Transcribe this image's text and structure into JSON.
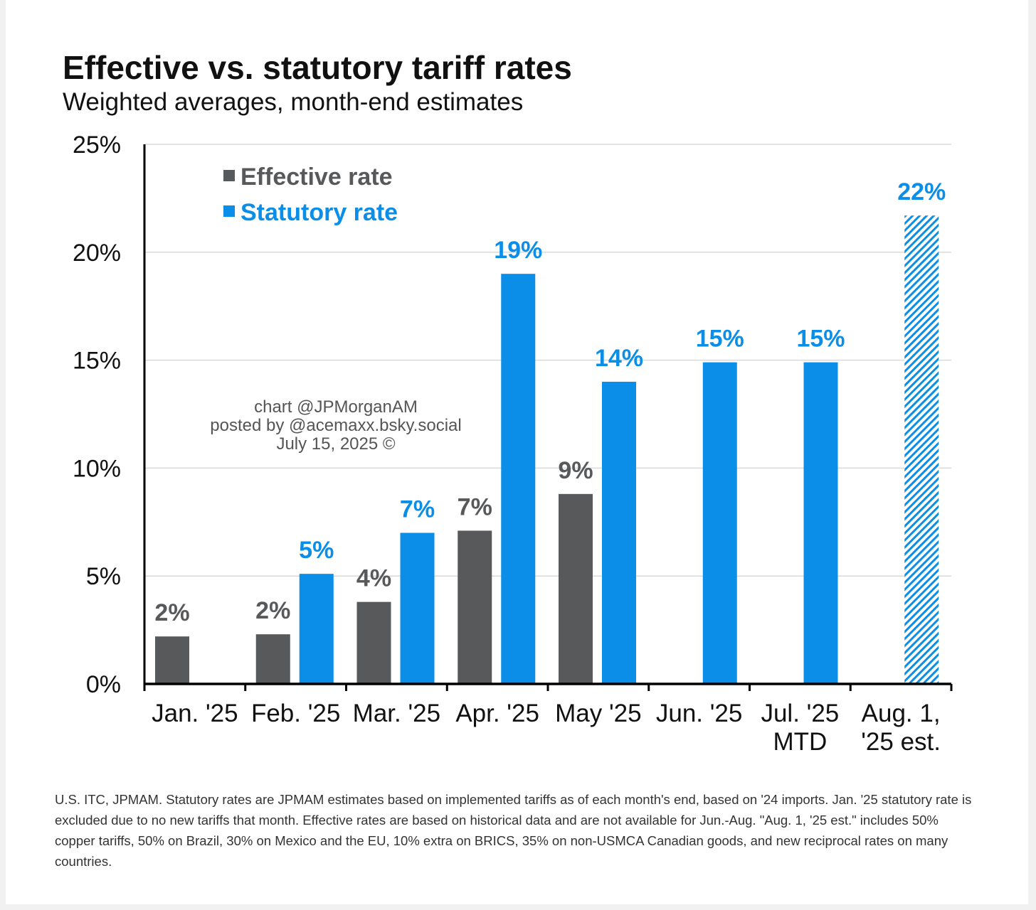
{
  "chart_data": {
    "type": "bar",
    "title": "Effective vs. statutory tariff rates",
    "subtitle": "Weighted averages, month-end estimates",
    "categories": [
      [
        "Jan. '25"
      ],
      [
        "Feb. '25"
      ],
      [
        "Mar. '25"
      ],
      [
        "Apr. '25"
      ],
      [
        "May '25"
      ],
      [
        "Jun. '25"
      ],
      [
        "Jul. '25",
        "MTD"
      ],
      [
        "Aug. 1,",
        "'25 est."
      ]
    ],
    "series": [
      {
        "name": "Effective rate",
        "color": "#58595b",
        "values": [
          2.2,
          2.3,
          3.8,
          7.1,
          8.8,
          null,
          null,
          null
        ],
        "labels": [
          "2%",
          "2%",
          "4%",
          "7%",
          "9%",
          "",
          "",
          ""
        ]
      },
      {
        "name": "Statutory rate",
        "color": "#0a8ee8",
        "values": [
          null,
          5.1,
          7.0,
          19.0,
          14.0,
          14.9,
          14.9,
          21.7
        ],
        "labels": [
          "",
          "5%",
          "7%",
          "19%",
          "14%",
          "15%",
          "15%",
          "22%"
        ],
        "estimate_index": 7
      }
    ],
    "ylim": [
      0,
      25
    ],
    "yticks": [
      0,
      5,
      10,
      15,
      20,
      25
    ],
    "ytick_labels": [
      "0%",
      "5%",
      "10%",
      "15%",
      "20%",
      "25%"
    ],
    "grid": true,
    "legend_position": "top-left"
  },
  "watermark": [
    "chart @JPMorganAM",
    "posted by @acemaxx.bsky.social",
    "July 15, 2025 ©"
  ],
  "footnote": "U.S. ITC, JPMAM. Statutory rates are JPMAM estimates based on implemented tariffs as of each month's end, based on '24 imports. Jan. '25 statutory rate is excluded due to no new tariffs that month. Effective rates are based on historical data and are not available for Jun.-Aug. \"Aug. 1, '25 est.\" includes 50% copper tariffs, 50% on Brazil, 30% on Mexico and the EU, 10% extra on BRICS, 35% on non-USMCA Canadian goods, and new reciprocal rates on many countries."
}
